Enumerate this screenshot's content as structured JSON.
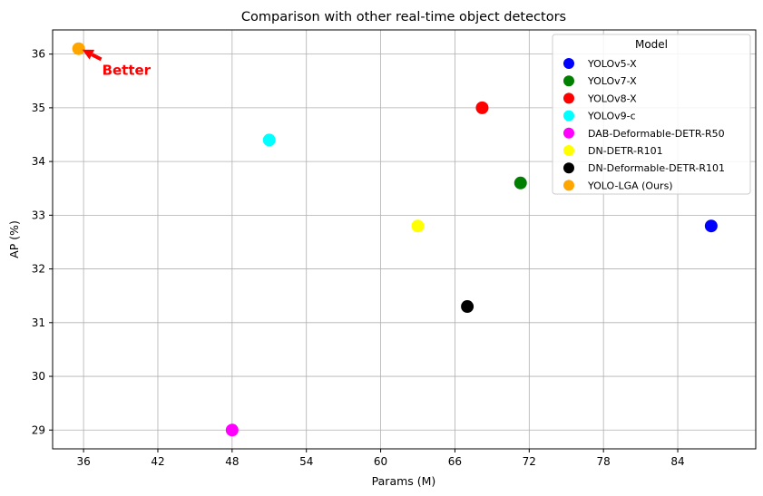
{
  "chart_data": {
    "type": "scatter",
    "title": "Comparison with other real-time object detectors",
    "xlabel": "Params (M)",
    "ylabel": "AP (%)",
    "xlim": [
      33.5,
      90.3
    ],
    "ylim": [
      28.65,
      36.45
    ],
    "xticks": [
      36,
      42,
      48,
      54,
      60,
      66,
      72,
      78,
      84
    ],
    "yticks": [
      29,
      30,
      31,
      32,
      33,
      34,
      35,
      36
    ],
    "grid": true,
    "legend": {
      "title": "Model",
      "placement": "upper right"
    },
    "series": [
      {
        "name": "YOLOv5-X",
        "color": "#0000ff",
        "x": 86.7,
        "y": 32.8
      },
      {
        "name": "YOLOv7-X",
        "color": "#008000",
        "x": 71.3,
        "y": 33.6
      },
      {
        "name": "YOLOv8-X",
        "color": "#ff0000",
        "x": 68.2,
        "y": 35.0
      },
      {
        "name": "YOLOv9-c",
        "color": "#00ffff",
        "x": 51.0,
        "y": 34.4
      },
      {
        "name": "DAB-Deformable-DETR-R50",
        "color": "#ff00ff",
        "x": 48.0,
        "y": 29.0
      },
      {
        "name": "DN-DETR-R101",
        "color": "#ffff00",
        "x": 63.0,
        "y": 32.8
      },
      {
        "name": "DN-Deformable-DETR-R101",
        "color": "#000000",
        "x": 67.0,
        "y": 31.3
      },
      {
        "name": "YOLO-LGA (Ours)",
        "color": "#ffa500",
        "x": 35.6,
        "y": 36.1
      }
    ],
    "annotation": {
      "text": "Better",
      "color": "#ff0000",
      "x": 37.5,
      "y": 35.7,
      "arrow_to": [
        35.6,
        36.1
      ]
    }
  }
}
